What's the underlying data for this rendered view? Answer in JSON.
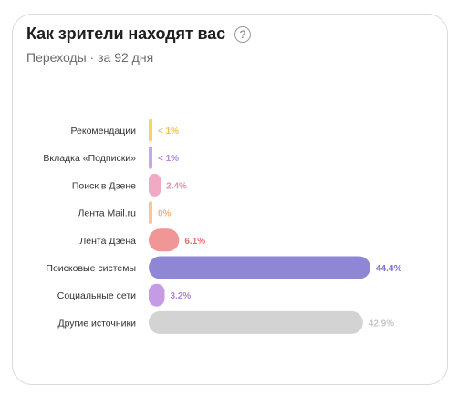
{
  "widget": {
    "title": "Как зрители находят вас",
    "help_glyph": "?",
    "help_icon": "question-circle-icon",
    "subtitle": "Переходы · за 92 дня"
  },
  "chart_data": {
    "type": "bar",
    "orientation": "horizontal",
    "categories": [
      "Рекомендации",
      "Вкладка «Подписки»",
      "Поиск в Дзене",
      "Лента Mail.ru",
      "Лента Дзена",
      "Поисковые системы",
      "Социальные сети",
      "Другие источники"
    ],
    "values": [
      0.5,
      0.5,
      2.4,
      0,
      6.1,
      44.4,
      3.2,
      42.9
    ],
    "value_labels": [
      "< 1%",
      "< 1%",
      "2.4%",
      "0%",
      "6.1%",
      "44.4%",
      "3.2%",
      "42.9%"
    ],
    "colors": [
      "#f5d36b",
      "#c9a6e8",
      "#f2a9c4",
      "#f7c98a",
      "#f09696",
      "#8f87d6",
      "#c59be6",
      "#d3d3d3"
    ],
    "label_colors": [
      "#f0c24a",
      "#b48bdb",
      "#e88fb0",
      "#f2b56a",
      "#e86e6e",
      "#7a72cc",
      "#b085dc",
      "#c8c8c8"
    ],
    "xlim": [
      0,
      44.4
    ],
    "grid": false,
    "legend": "none"
  }
}
